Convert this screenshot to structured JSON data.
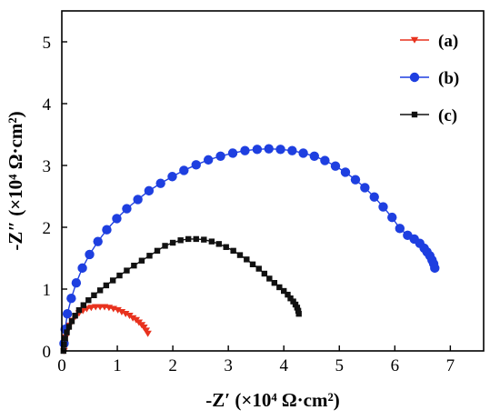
{
  "chart_data": {
    "type": "scatter",
    "title": "",
    "xlabel": "-Z′ (×10⁴ Ω·cm²)",
    "ylabel": "-Z″ (×10⁴ Ω·cm²)",
    "xlim": [
      0,
      7.6
    ],
    "ylim": [
      0,
      5.5
    ],
    "xticks": [
      0,
      1,
      2,
      3,
      4,
      5,
      6,
      7
    ],
    "yticks": [
      0,
      1,
      2,
      3,
      4,
      5
    ],
    "grid": false,
    "legend_position": "top-right",
    "series": [
      {
        "name": "(a)",
        "color": "#e8321e",
        "marker": "triangle-down",
        "x": [
          0.04,
          0.05,
          0.07,
          0.1,
          0.14,
          0.19,
          0.25,
          0.31,
          0.38,
          0.45,
          0.53,
          0.61,
          0.69,
          0.77,
          0.85,
          0.93,
          1.01,
          1.08,
          1.15,
          1.22,
          1.28,
          1.34,
          1.39,
          1.44,
          1.48,
          1.52,
          1.55
        ],
        "y": [
          0.0,
          0.12,
          0.22,
          0.32,
          0.41,
          0.49,
          0.56,
          0.61,
          0.65,
          0.68,
          0.7,
          0.71,
          0.71,
          0.71,
          0.7,
          0.68,
          0.66,
          0.63,
          0.6,
          0.57,
          0.53,
          0.5,
          0.46,
          0.42,
          0.38,
          0.33,
          0.28
        ]
      },
      {
        "name": "(b)",
        "color": "#1e3fe0",
        "marker": "circle",
        "x": [
          0.04,
          0.06,
          0.1,
          0.17,
          0.26,
          0.37,
          0.5,
          0.65,
          0.81,
          0.99,
          1.17,
          1.37,
          1.57,
          1.78,
          1.99,
          2.2,
          2.42,
          2.64,
          2.86,
          3.08,
          3.3,
          3.52,
          3.73,
          3.94,
          4.15,
          4.35,
          4.55,
          4.74,
          4.93,
          5.11,
          5.29,
          5.46,
          5.63,
          5.79,
          5.95,
          6.09,
          6.23,
          6.35,
          6.45,
          6.53,
          6.58,
          6.63,
          6.67,
          6.7,
          6.72
        ],
        "y": [
          0.12,
          0.35,
          0.6,
          0.85,
          1.1,
          1.34,
          1.56,
          1.77,
          1.96,
          2.14,
          2.3,
          2.45,
          2.59,
          2.71,
          2.82,
          2.92,
          3.01,
          3.09,
          3.15,
          3.2,
          3.24,
          3.26,
          3.27,
          3.26,
          3.24,
          3.2,
          3.15,
          3.08,
          2.99,
          2.89,
          2.77,
          2.64,
          2.49,
          2.33,
          2.16,
          1.98,
          1.87,
          1.81,
          1.74,
          1.66,
          1.6,
          1.54,
          1.47,
          1.41,
          1.34
        ]
      },
      {
        "name": "(c)",
        "color": "#111111",
        "marker": "square",
        "x": [
          0.03,
          0.04,
          0.06,
          0.09,
          0.13,
          0.18,
          0.24,
          0.31,
          0.39,
          0.48,
          0.58,
          0.69,
          0.8,
          0.92,
          1.04,
          1.17,
          1.3,
          1.44,
          1.58,
          1.72,
          1.86,
          2.0,
          2.14,
          2.28,
          2.42,
          2.56,
          2.7,
          2.83,
          2.96,
          3.09,
          3.21,
          3.33,
          3.44,
          3.55,
          3.65,
          3.74,
          3.83,
          3.92,
          4.0,
          4.07,
          4.12,
          4.17,
          4.21,
          4.24,
          4.26,
          4.27
        ],
        "y": [
          0.0,
          0.1,
          0.2,
          0.3,
          0.39,
          0.48,
          0.57,
          0.66,
          0.74,
          0.82,
          0.9,
          0.98,
          1.06,
          1.14,
          1.22,
          1.3,
          1.38,
          1.46,
          1.54,
          1.62,
          1.7,
          1.75,
          1.79,
          1.81,
          1.81,
          1.8,
          1.77,
          1.73,
          1.68,
          1.62,
          1.55,
          1.48,
          1.4,
          1.33,
          1.25,
          1.17,
          1.1,
          1.03,
          0.97,
          0.91,
          0.85,
          0.8,
          0.75,
          0.7,
          0.65,
          0.6
        ]
      }
    ]
  }
}
